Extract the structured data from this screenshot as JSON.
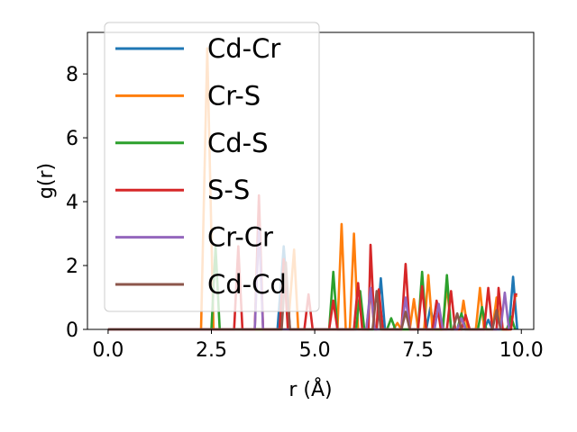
{
  "chart_data": {
    "type": "line",
    "xlabel": "r (Å)",
    "ylabel": "g(r)",
    "xlim": [
      -0.5,
      10.3
    ],
    "ylim": [
      0,
      9.3
    ],
    "xticks": [
      0.0,
      2.5,
      5.0,
      7.5,
      10.0
    ],
    "xtick_labels": [
      "0.0",
      "2.5",
      "5.0",
      "7.5",
      "10.0"
    ],
    "yticks": [
      0,
      2,
      4,
      6,
      8
    ],
    "ytick_labels": [
      "0",
      "2",
      "4",
      "6",
      "8"
    ],
    "grid": false,
    "legend_placement": "upper-left",
    "colors": [
      "#1f77b4",
      "#ff7f0e",
      "#2ca02c",
      "#d62728",
      "#9467bd",
      "#8c564b"
    ],
    "series": [
      {
        "name": "Cd-Cr",
        "points": [
          [
            0,
            0
          ],
          [
            4.1,
            0
          ],
          [
            4.25,
            2.6
          ],
          [
            4.4,
            0
          ],
          [
            6.5,
            0
          ],
          [
            6.6,
            1.6
          ],
          [
            6.7,
            0
          ],
          [
            7.7,
            0
          ],
          [
            7.8,
            0.7
          ],
          [
            7.9,
            0
          ],
          [
            9.1,
            0
          ],
          [
            9.2,
            0.3
          ],
          [
            9.3,
            0
          ],
          [
            9.7,
            0
          ],
          [
            9.8,
            1.65
          ],
          [
            9.9,
            0
          ]
        ]
      },
      {
        "name": "Cr-S",
        "points": [
          [
            0,
            0
          ],
          [
            2.25,
            0
          ],
          [
            2.4,
            8.8
          ],
          [
            2.55,
            0
          ],
          [
            4.35,
            0
          ],
          [
            4.5,
            2.5
          ],
          [
            4.6,
            0
          ],
          [
            5.55,
            0
          ],
          [
            5.65,
            3.3
          ],
          [
            5.75,
            0
          ],
          [
            5.85,
            0
          ],
          [
            5.95,
            3.0
          ],
          [
            6.05,
            0
          ],
          [
            6.25,
            0
          ],
          [
            6.35,
            1.2
          ],
          [
            6.45,
            0
          ],
          [
            6.9,
            0
          ],
          [
            7.0,
            0.2
          ],
          [
            7.1,
            0
          ],
          [
            7.3,
            0
          ],
          [
            7.4,
            0.95
          ],
          [
            7.5,
            0
          ],
          [
            7.65,
            0
          ],
          [
            7.75,
            1.7
          ],
          [
            7.85,
            0
          ],
          [
            8.1,
            0
          ],
          [
            8.2,
            1.4
          ],
          [
            8.3,
            0
          ],
          [
            8.5,
            0
          ],
          [
            8.6,
            0.9
          ],
          [
            8.7,
            0
          ],
          [
            8.9,
            0
          ],
          [
            9.0,
            1.3
          ],
          [
            9.1,
            0
          ],
          [
            9.3,
            0
          ],
          [
            9.4,
            1.0
          ],
          [
            9.5,
            0
          ],
          [
            9.75,
            0
          ],
          [
            9.85,
            1.05
          ],
          [
            9.9,
            1.05
          ]
        ]
      },
      {
        "name": "Cd-S",
        "points": [
          [
            0,
            0
          ],
          [
            2.5,
            0
          ],
          [
            2.6,
            2.6
          ],
          [
            2.7,
            0
          ],
          [
            5.35,
            0
          ],
          [
            5.45,
            1.8
          ],
          [
            5.55,
            0
          ],
          [
            6.0,
            0
          ],
          [
            6.1,
            1.2
          ],
          [
            6.2,
            0
          ],
          [
            6.75,
            0
          ],
          [
            6.85,
            0.35
          ],
          [
            6.95,
            0
          ],
          [
            7.5,
            0
          ],
          [
            7.6,
            1.8
          ],
          [
            7.7,
            0
          ],
          [
            8.1,
            0
          ],
          [
            8.2,
            1.7
          ],
          [
            8.3,
            0
          ],
          [
            8.45,
            0
          ],
          [
            8.55,
            0.5
          ],
          [
            8.65,
            0
          ],
          [
            8.95,
            0
          ],
          [
            9.05,
            0.7
          ],
          [
            9.15,
            0
          ],
          [
            9.65,
            0
          ],
          [
            9.75,
            0.4
          ],
          [
            9.85,
            0
          ]
        ]
      },
      {
        "name": "S-S",
        "points": [
          [
            0,
            0
          ],
          [
            3.05,
            0
          ],
          [
            3.15,
            2.6
          ],
          [
            3.25,
            0
          ],
          [
            3.55,
            0
          ],
          [
            3.65,
            4.2
          ],
          [
            3.75,
            0
          ],
          [
            4.15,
            0
          ],
          [
            4.25,
            2.2
          ],
          [
            4.35,
            0
          ],
          [
            4.75,
            0
          ],
          [
            4.85,
            1.1
          ],
          [
            4.95,
            0
          ],
          [
            5.35,
            0
          ],
          [
            5.45,
            0.9
          ],
          [
            5.55,
            0
          ],
          [
            5.95,
            0
          ],
          [
            6.05,
            1.45
          ],
          [
            6.15,
            0
          ],
          [
            6.3,
            0
          ],
          [
            6.35,
            2.65
          ],
          [
            6.45,
            0
          ],
          [
            6.5,
            0
          ],
          [
            6.55,
            1.25
          ],
          [
            6.65,
            0
          ],
          [
            7.1,
            0
          ],
          [
            7.2,
            2.05
          ],
          [
            7.3,
            0
          ],
          [
            7.5,
            0
          ],
          [
            7.6,
            1.35
          ],
          [
            7.7,
            0
          ],
          [
            7.85,
            0
          ],
          [
            7.95,
            0.9
          ],
          [
            8.05,
            0
          ],
          [
            8.2,
            0
          ],
          [
            8.3,
            1.2
          ],
          [
            8.4,
            0
          ],
          [
            8.55,
            0
          ],
          [
            8.65,
            0.45
          ],
          [
            8.75,
            0
          ],
          [
            9.1,
            0
          ],
          [
            9.2,
            1.3
          ],
          [
            9.3,
            0
          ],
          [
            9.4,
            0
          ],
          [
            9.45,
            1.3
          ],
          [
            9.55,
            0
          ],
          [
            9.75,
            0
          ],
          [
            9.85,
            1.1
          ],
          [
            9.9,
            1.1
          ]
        ]
      },
      {
        "name": "Cr-Cr",
        "points": [
          [
            0,
            0
          ],
          [
            3.55,
            0
          ],
          [
            3.65,
            3.2
          ],
          [
            3.75,
            0
          ],
          [
            6.25,
            0
          ],
          [
            6.35,
            1.3
          ],
          [
            6.45,
            0
          ],
          [
            7.1,
            0
          ],
          [
            7.2,
            1.0
          ],
          [
            7.3,
            0
          ],
          [
            7.9,
            0
          ],
          [
            8.0,
            0.8
          ],
          [
            8.1,
            0
          ],
          [
            8.45,
            0
          ],
          [
            8.55,
            0.35
          ],
          [
            8.65,
            0
          ],
          [
            9.5,
            0
          ],
          [
            9.6,
            1.15
          ],
          [
            9.7,
            0
          ]
        ]
      },
      {
        "name": "Cd-Cd",
        "points": [
          [
            0,
            0
          ],
          [
            4.2,
            0
          ],
          [
            4.3,
            2.1
          ],
          [
            4.4,
            0
          ],
          [
            6.4,
            0
          ],
          [
            6.5,
            1.2
          ],
          [
            6.6,
            0
          ],
          [
            7.1,
            0
          ],
          [
            7.2,
            0.55
          ],
          [
            7.3,
            0
          ],
          [
            8.35,
            0
          ],
          [
            8.45,
            0.5
          ],
          [
            8.55,
            0
          ],
          [
            9.3,
            0
          ],
          [
            9.4,
            0.6
          ],
          [
            9.5,
            0
          ]
        ]
      }
    ]
  }
}
